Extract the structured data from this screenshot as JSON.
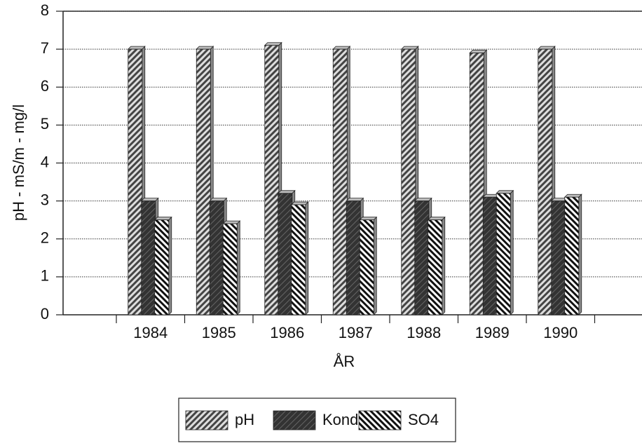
{
  "chart_data": {
    "type": "bar",
    "ylabel": "pH - mS/m - mg/l",
    "xlabel": "ÅR",
    "categories": [
      "1984",
      "1985",
      "1986",
      "1987",
      "1988",
      "1989",
      "1990"
    ],
    "series": [
      {
        "name": "pH",
        "color": "#444444",
        "values": [
          7.0,
          7.0,
          7.1,
          7.0,
          7.0,
          6.9,
          7.0
        ]
      },
      {
        "name": "Kond",
        "color": "#333333",
        "values": [
          3.0,
          3.0,
          3.2,
          3.0,
          3.0,
          3.1,
          3.0
        ]
      },
      {
        "name": "SO4",
        "color": "#111111",
        "values": [
          2.5,
          2.4,
          2.9,
          2.5,
          2.5,
          3.2,
          3.1
        ]
      }
    ],
    "ylim": [
      0,
      8
    ],
    "yticks": [
      0,
      1,
      2,
      3,
      4,
      5,
      6,
      7,
      8
    ],
    "grid": true,
    "legend": "bottom"
  }
}
